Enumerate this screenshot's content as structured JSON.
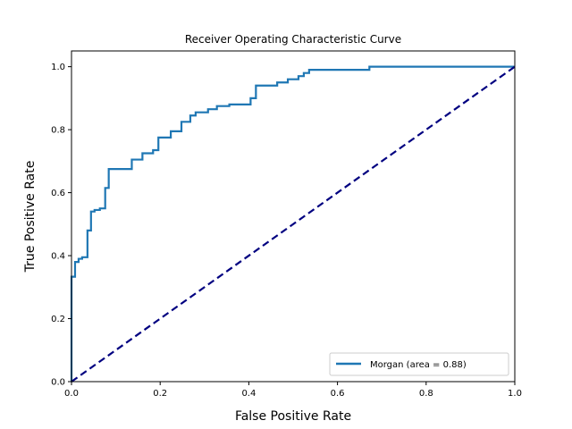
{
  "chart_data": {
    "type": "line",
    "title": "Receiver Operating Characteristic Curve",
    "xlabel": "False Positive Rate",
    "ylabel": "True Positive Rate",
    "xlim": [
      0.0,
      1.0
    ],
    "ylim": [
      0.0,
      1.05
    ],
    "xticks": [
      0.0,
      0.2,
      0.4,
      0.6,
      0.8,
      1.0
    ],
    "yticks": [
      0.0,
      0.2,
      0.4,
      0.6,
      0.8,
      1.0
    ],
    "xtick_labels": [
      "0.0",
      "0.2",
      "0.4",
      "0.6",
      "0.8",
      "1.0"
    ],
    "ytick_labels": [
      "0.0",
      "0.2",
      "0.4",
      "0.6",
      "0.8",
      "1.0"
    ],
    "grid": false,
    "legend_position": "lower right",
    "series": [
      {
        "name": "Morgan (area = 0.88)",
        "color": "#1f77b4",
        "style": "solid",
        "x": [
          0.0,
          0.0,
          0.008,
          0.008,
          0.016,
          0.016,
          0.024,
          0.024,
          0.036,
          0.036,
          0.044,
          0.044,
          0.052,
          0.052,
          0.064,
          0.064,
          0.076,
          0.076,
          0.084,
          0.084,
          0.136,
          0.136,
          0.16,
          0.16,
          0.184,
          0.184,
          0.196,
          0.196,
          0.224,
          0.224,
          0.248,
          0.248,
          0.268,
          0.268,
          0.28,
          0.28,
          0.308,
          0.308,
          0.328,
          0.328,
          0.356,
          0.356,
          0.404,
          0.404,
          0.416,
          0.416,
          0.464,
          0.464,
          0.488,
          0.488,
          0.512,
          0.512,
          0.524,
          0.524,
          0.536,
          0.536,
          0.672,
          0.672,
          1.0
        ],
        "y": [
          0.0,
          0.333,
          0.333,
          0.38,
          0.38,
          0.39,
          0.39,
          0.395,
          0.395,
          0.48,
          0.48,
          0.54,
          0.54,
          0.545,
          0.545,
          0.55,
          0.55,
          0.615,
          0.615,
          0.675,
          0.675,
          0.705,
          0.705,
          0.725,
          0.725,
          0.735,
          0.735,
          0.775,
          0.775,
          0.795,
          0.795,
          0.825,
          0.825,
          0.845,
          0.845,
          0.855,
          0.855,
          0.865,
          0.865,
          0.875,
          0.875,
          0.88,
          0.88,
          0.9,
          0.9,
          0.94,
          0.94,
          0.95,
          0.95,
          0.96,
          0.96,
          0.97,
          0.97,
          0.98,
          0.98,
          0.99,
          0.99,
          1.0,
          1.0
        ]
      },
      {
        "name": "",
        "color": "#000080",
        "style": "dashed",
        "x": [
          0.0,
          1.0
        ],
        "y": [
          0.0,
          1.0
        ]
      }
    ]
  }
}
